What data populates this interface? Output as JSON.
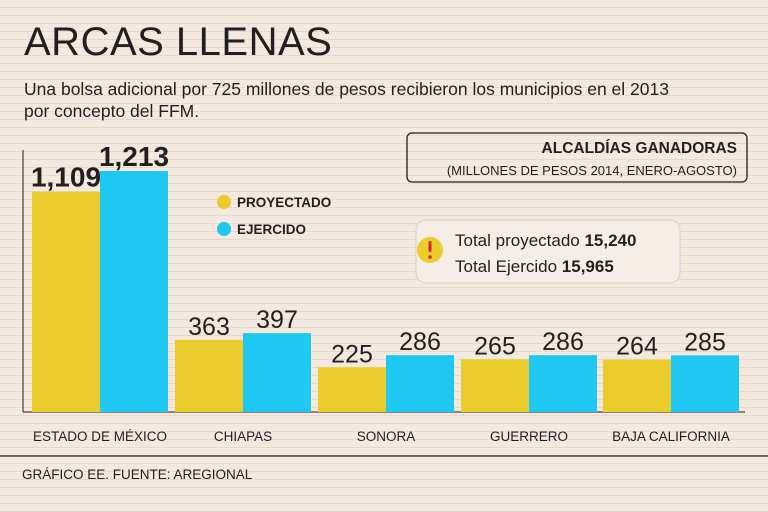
{
  "title": "ARCAS LLENAS",
  "subtitle": [
    "Una bolsa adicional por 725 millones de pesos recibieron los municipios en el 2013",
    "por concepto del FFM."
  ],
  "source": "GRÁFICO EE. FUENTE: AREGIONAL",
  "colors": {
    "proyectado": "#eacd2c",
    "ejercido": "#1ec8f0",
    "background": "#f3e9df",
    "text": "#231f20"
  },
  "chart_data": {
    "type": "bar",
    "title": "ALCALDÍAS GANADORAS",
    "subtitle": "(MILLONES DE PESOS 2014, ENERO-AGOSTO)",
    "categories": [
      "ESTADO DE MÉXICO",
      "CHIAPAS",
      "SONORA",
      "GUERRERO",
      "BAJA CALIFORNIA"
    ],
    "series": [
      {
        "name": "PROYECTADO",
        "values": [
          1109,
          363,
          225,
          265,
          264
        ],
        "labels": [
          "1,109",
          "363",
          "225",
          "265",
          "264"
        ]
      },
      {
        "name": "EJERCIDO",
        "values": [
          1213,
          397,
          286,
          286,
          285
        ],
        "labels": [
          "1,213",
          "397",
          "286",
          "286",
          "285"
        ]
      }
    ],
    "ylim": [
      0,
      1213
    ],
    "legend_position": "top-center",
    "note": {
      "line1_label": "Total proyectado",
      "line1_value": "15,240",
      "line2_label": "Total Ejercido",
      "line2_value": "15,965"
    }
  }
}
